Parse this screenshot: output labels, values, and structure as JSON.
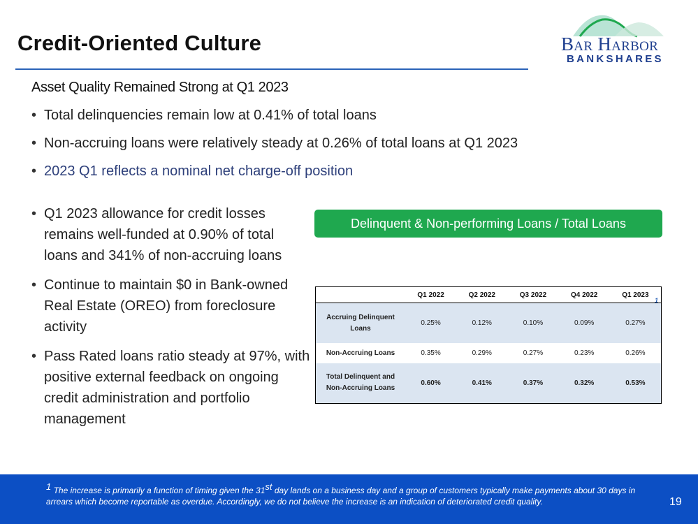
{
  "header": {
    "title": "Credit-Oriented Culture",
    "logo": {
      "line1": "Bar Harbor",
      "line2": "BANKSHARES"
    }
  },
  "subtitle": "Asset Quality Remained Strong at Q1 2023",
  "top_bullets": [
    "Total delinquencies remain low at 0.41% of total loans",
    "Non-accruing loans were relatively steady at 0.26% of total loans at Q1 2023",
    "2023 Q1 reflects a nominal net charge-off position"
  ],
  "left_bullets": [
    "Q1 2023 allowance for credit losses remains well-funded at 0.90% of total loans and 341% of non-accruing loans",
    "Continue to maintain $0 in Bank-owned Real Estate (OREO) from foreclosure activity",
    "Pass Rated loans ratio steady at 97%, with positive external feedback on ongoing credit administration and portfolio management"
  ],
  "chart_banner": "Delinquent & Non-performing Loans / Total Loans",
  "table": {
    "columns": [
      "Q1 2022",
      "Q2 2022",
      "Q3 2022",
      "Q4 2022",
      "Q1 2023"
    ],
    "footnote_marker": "1",
    "rows": [
      {
        "label": "Accruing Delinquent Loans",
        "values": [
          "0.25%",
          "0.12%",
          "0.10%",
          "0.09%",
          "0.27%"
        ]
      },
      {
        "label": "Non-Accruing Loans",
        "values": [
          "0.35%",
          "0.29%",
          "0.27%",
          "0.23%",
          "0.26%"
        ]
      },
      {
        "label": "Total Delinquent and Non-Accruing Loans",
        "values": [
          "0.60%",
          "0.41%",
          "0.37%",
          "0.32%",
          "0.53%"
        ]
      }
    ]
  },
  "footer": {
    "footnote_marker": "1",
    "footnote_pre": "The increase is primarily a function of timing given the 31",
    "footnote_sup": "st",
    "footnote_post": " day lands on a business day and a group of customers typically make payments about 30 days in arrears which become reportable as overdue.  Accordingly, we do not believe the increase is an indication of deteriorated credit quality.",
    "page_number": "19"
  },
  "colors": {
    "title_rule": "#2b63b8",
    "banner_green": "#1fa84f",
    "footer_blue": "#0c4fc4",
    "table_shade": "#dbe5f1",
    "logo_navy": "#1f3f8f"
  }
}
